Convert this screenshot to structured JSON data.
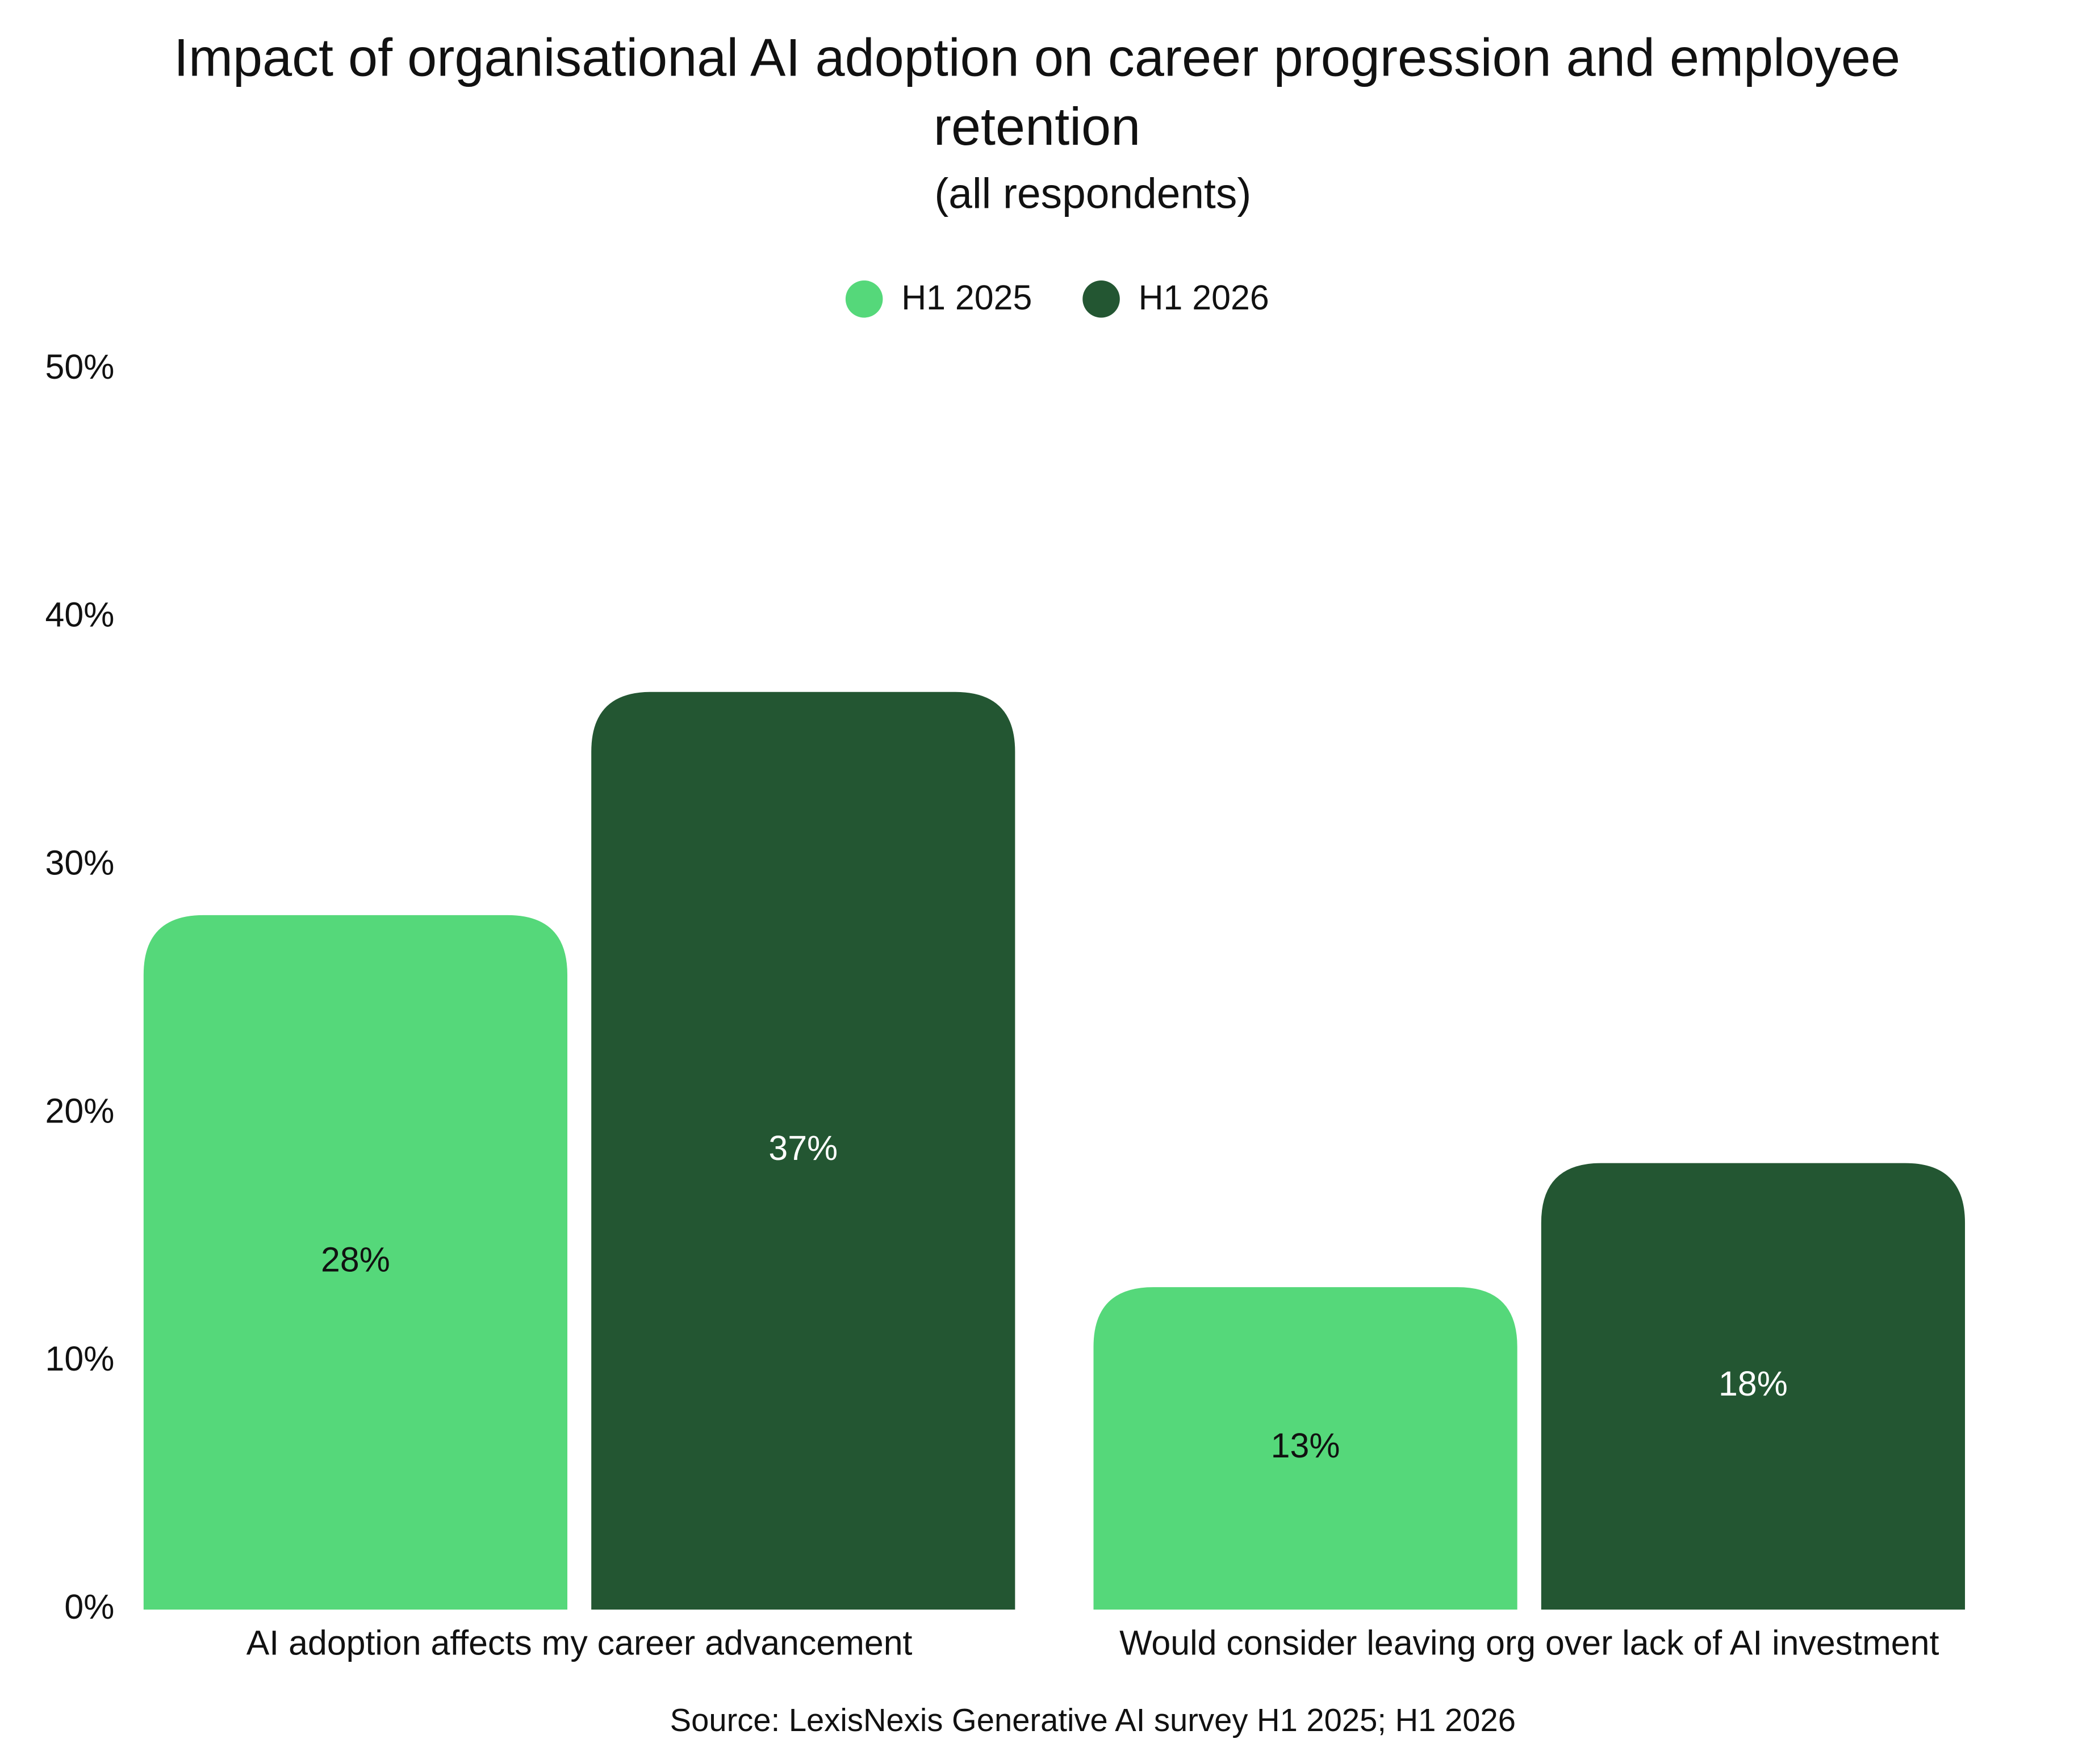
{
  "chart_data": {
    "type": "bar",
    "title": "Impact of organisational AI adoption on career progression and employee retention",
    "subtitle": "(all respondents)",
    "source": "Source: LexisNexis Generative AI survey H1 2025; H1 2026",
    "categories": [
      "AI adoption affects my career advancement",
      "Would consider leaving org over lack of AI investment"
    ],
    "series": [
      {
        "name": "H1 2025",
        "color": "#55d87a",
        "label_color": "#111111",
        "values": [
          28,
          13
        ],
        "value_labels": [
          "28%",
          "13%"
        ]
      },
      {
        "name": "H1 2026",
        "color": "#235632",
        "label_color": "#ffffff",
        "values": [
          37,
          18
        ],
        "value_labels": [
          "37%",
          "18%"
        ]
      }
    ],
    "ylim": [
      0,
      50
    ],
    "yticks": [
      {
        "value": 0,
        "label": "0%"
      },
      {
        "value": 10,
        "label": "10%"
      },
      {
        "value": 20,
        "label": "20%"
      },
      {
        "value": 30,
        "label": "30%"
      },
      {
        "value": 40,
        "label": "40%"
      },
      {
        "value": 50,
        "label": "50%"
      }
    ],
    "grid": false,
    "legend": "top"
  }
}
